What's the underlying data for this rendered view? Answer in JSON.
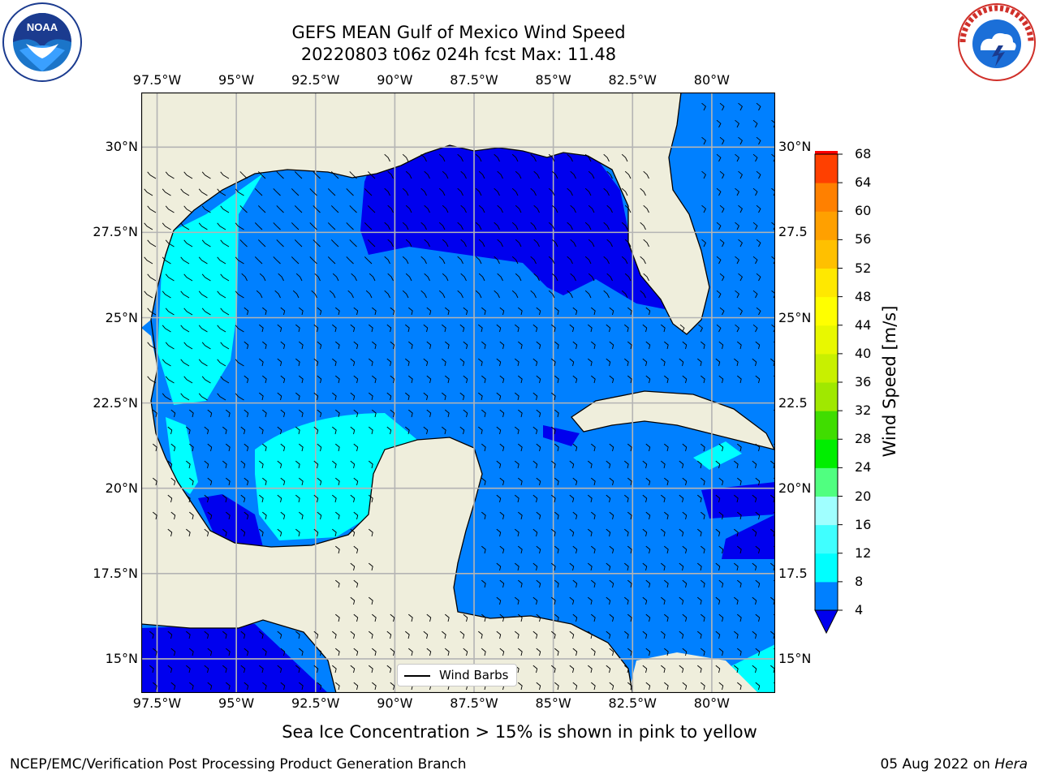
{
  "title_line1": "GEFS MEAN Gulf of Mexico Wind Speed",
  "title_line2": "20220803 t06z 024h fcst   Max: 11.48",
  "map": {
    "lon_ticks": [
      "97.5°W",
      "95°W",
      "92.5°W",
      "90°W",
      "87.5°W",
      "85°W",
      "82.5°W",
      "80°W"
    ],
    "lon_values": [
      -97.5,
      -95,
      -92.5,
      -90,
      -87.5,
      -85,
      -82.5,
      -80
    ],
    "lat_ticks": [
      "30°N",
      "27.5°N",
      "25°N",
      "22.5°N",
      "20°N",
      "17.5°N",
      "15°N"
    ],
    "lat_values": [
      30,
      27.5,
      25,
      22.5,
      20,
      17.5,
      15
    ],
    "lat_ticks_right": [
      "30°N",
      "27.5",
      "25°N",
      "22.5",
      "20°N",
      "17.5",
      "15°N"
    ],
    "extent": {
      "lon_min": -98,
      "lon_max": -78,
      "lat_min": 14,
      "lat_max": 31.6
    },
    "colors": {
      "land": "#efeedc",
      "band_4_8": "#0080ff",
      "band_0_4": "#0000ee",
      "band_8_12": "#00ffff",
      "grid": "#b4b4b4"
    }
  },
  "colorbar": {
    "label": "Wind Speed [m/s]",
    "levels": [
      "4",
      "8",
      "12",
      "16",
      "20",
      "24",
      "28",
      "32",
      "36",
      "40",
      "44",
      "48",
      "52",
      "56",
      "60",
      "64",
      "68"
    ],
    "colors": [
      "#0080ff",
      "#00ffff",
      "#40ffff",
      "#a0ffff",
      "#50ff80",
      "#00ee00",
      "#40dd00",
      "#a0e800",
      "#c8f000",
      "#e8f800",
      "#ffff00",
      "#ffe800",
      "#ffc000",
      "#ffa000",
      "#ff8000",
      "#ff4000",
      "#ff0000"
    ],
    "extend_color": "#0000ee"
  },
  "legend": {
    "label": "Wind Barbs"
  },
  "subcaption": "Sea Ice Concentration > 15% is shown in pink to yellow",
  "footer_left": "NCEP/EMC/Verification Post Processing Product Generation Branch",
  "footer_right_prefix": "05 Aug 2022 on ",
  "footer_right_host": "Hera",
  "logos": {
    "left": "noaa-logo",
    "right": "nws-logo"
  }
}
